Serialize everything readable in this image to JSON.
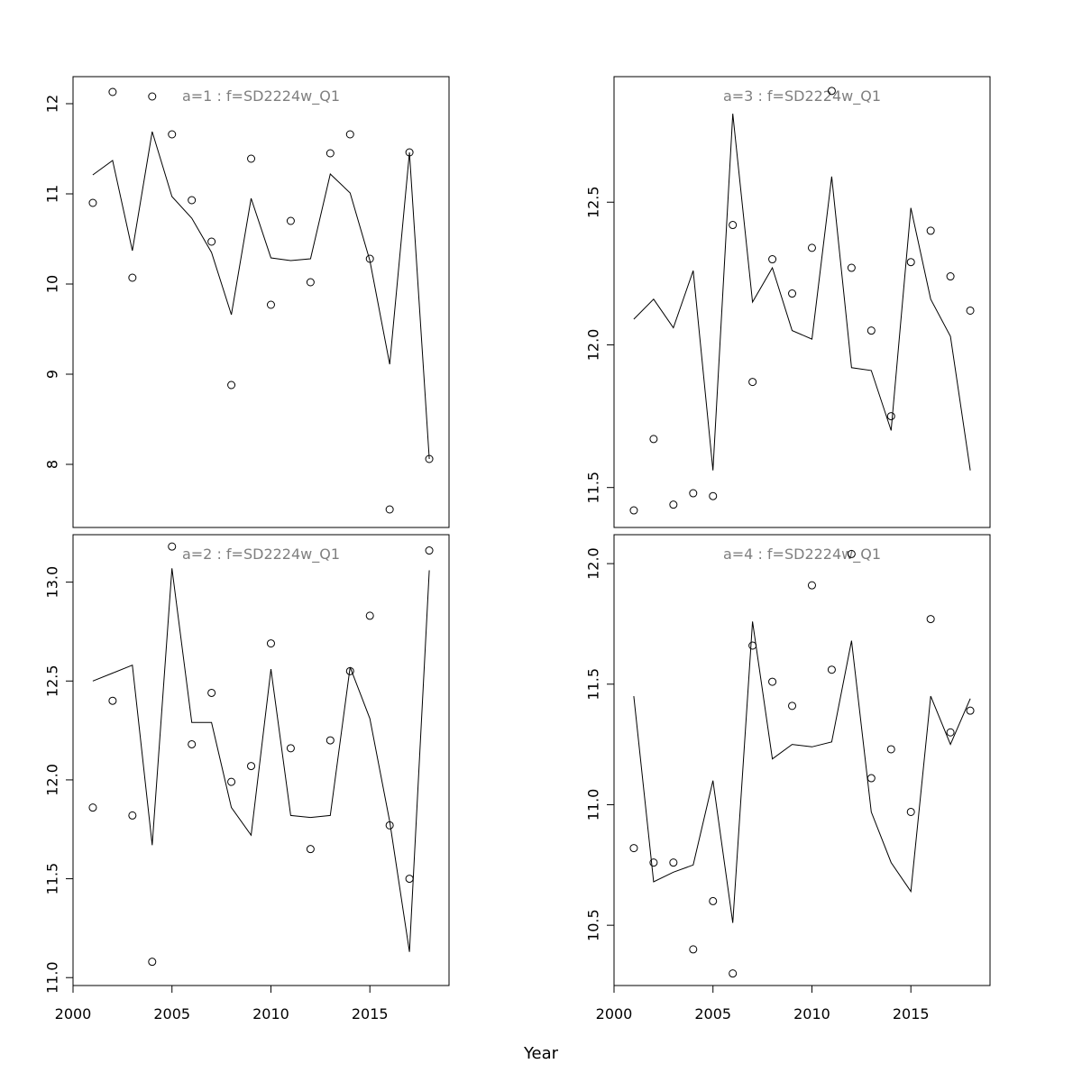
{
  "xlabel": "Year",
  "chart_data": [
    {
      "type": "line",
      "title": "a=1  :  f=SD2224w_Q1",
      "x": [
        2001,
        2002,
        2003,
        2004,
        2005,
        2006,
        2007,
        2008,
        2009,
        2010,
        2011,
        2012,
        2013,
        2014,
        2015,
        2016,
        2017,
        2018
      ],
      "series": [
        {
          "kind": "line",
          "values": [
            11.21,
            11.37,
            10.37,
            11.69,
            10.97,
            10.73,
            10.35,
            9.66,
            10.95,
            10.29,
            10.26,
            10.28,
            11.22,
            11.01,
            10.26,
            9.11,
            11.46,
            8.06
          ]
        },
        {
          "kind": "points",
          "values": [
            10.9,
            12.13,
            10.07,
            12.08,
            11.66,
            10.93,
            10.47,
            8.88,
            11.39,
            9.77,
            10.7,
            10.02,
            11.45,
            11.66,
            10.28,
            7.5,
            11.46,
            8.06
          ]
        }
      ],
      "xlim": [
        2000,
        2019
      ],
      "ylim": [
        7.3,
        12.3
      ],
      "xticks": [
        2000,
        2005,
        2010,
        2015
      ],
      "yticks": [
        8,
        9,
        10,
        11,
        12
      ],
      "ytick_labels": [
        "8",
        "9",
        "10",
        "11",
        "12"
      ],
      "show_xticks": false
    },
    {
      "type": "line",
      "title": "a=3  :  f=SD2224w_Q1",
      "x": [
        2001,
        2002,
        2003,
        2004,
        2005,
        2006,
        2007,
        2008,
        2009,
        2010,
        2011,
        2012,
        2013,
        2014,
        2015,
        2016,
        2017,
        2018
      ],
      "series": [
        {
          "kind": "line",
          "values": [
            12.09,
            12.16,
            12.06,
            12.26,
            11.56,
            12.81,
            12.15,
            12.27,
            12.05,
            12.02,
            12.59,
            11.92,
            11.91,
            11.7,
            12.48,
            12.16,
            12.03,
            11.56
          ]
        },
        {
          "kind": "points",
          "values": [
            11.42,
            11.67,
            11.44,
            11.48,
            11.47,
            12.42,
            11.87,
            12.3,
            12.18,
            12.34,
            12.89,
            12.27,
            12.05,
            11.75,
            12.29,
            12.4,
            12.24,
            12.12
          ]
        }
      ],
      "xlim": [
        2000,
        2019
      ],
      "ylim": [
        11.36,
        12.94
      ],
      "xticks": [
        2000,
        2005,
        2010,
        2015
      ],
      "yticks": [
        11.5,
        12.0,
        12.5
      ],
      "ytick_labels": [
        "11.5",
        "12.0",
        "12.5"
      ],
      "show_xticks": false
    },
    {
      "type": "line",
      "title": "a=2  :  f=SD2224w_Q1",
      "x": [
        2001,
        2002,
        2003,
        2004,
        2005,
        2006,
        2007,
        2008,
        2009,
        2010,
        2011,
        2012,
        2013,
        2014,
        2015,
        2016,
        2017,
        2018
      ],
      "series": [
        {
          "kind": "line",
          "values": [
            12.5,
            12.54,
            12.58,
            11.67,
            13.07,
            12.29,
            12.29,
            11.86,
            11.72,
            12.56,
            11.82,
            11.81,
            11.82,
            12.57,
            12.31,
            11.79,
            11.13,
            13.06
          ]
        },
        {
          "kind": "points",
          "values": [
            11.86,
            12.4,
            11.82,
            11.08,
            13.18,
            12.18,
            12.44,
            11.99,
            12.07,
            12.69,
            12.16,
            11.65,
            12.2,
            12.55,
            12.83,
            11.77,
            11.5,
            13.16
          ]
        }
      ],
      "xlim": [
        2000,
        2019
      ],
      "ylim": [
        10.96,
        13.24
      ],
      "xticks": [
        2000,
        2005,
        2010,
        2015
      ],
      "yticks": [
        11.0,
        11.5,
        12.0,
        12.5,
        13.0
      ],
      "ytick_labels": [
        "11.0",
        "11.5",
        "12.0",
        "12.5",
        "13.0"
      ],
      "show_xticks": true
    },
    {
      "type": "line",
      "title": "a=4  :  f=SD2224w_Q1",
      "x": [
        2001,
        2002,
        2003,
        2004,
        2005,
        2006,
        2007,
        2008,
        2009,
        2010,
        2011,
        2012,
        2013,
        2014,
        2015,
        2016,
        2017,
        2018
      ],
      "series": [
        {
          "kind": "line",
          "values": [
            11.45,
            10.68,
            10.72,
            10.75,
            11.1,
            10.51,
            11.76,
            11.19,
            11.25,
            11.24,
            11.26,
            11.68,
            10.97,
            10.76,
            10.64,
            11.45,
            11.25,
            11.44
          ]
        },
        {
          "kind": "points",
          "values": [
            10.82,
            10.76,
            10.76,
            10.4,
            10.6,
            10.3,
            11.66,
            11.51,
            11.41,
            11.91,
            11.56,
            12.04,
            11.11,
            11.23,
            10.97,
            11.77,
            11.3,
            11.39
          ]
        }
      ],
      "xlim": [
        2000,
        2019
      ],
      "ylim": [
        10.25,
        12.12
      ],
      "xticks": [
        2000,
        2005,
        2010,
        2015
      ],
      "yticks": [
        10.5,
        11.0,
        11.5,
        12.0
      ],
      "ytick_labels": [
        "10.5",
        "11.0",
        "11.5",
        "12.0"
      ],
      "show_xticks": true
    }
  ]
}
